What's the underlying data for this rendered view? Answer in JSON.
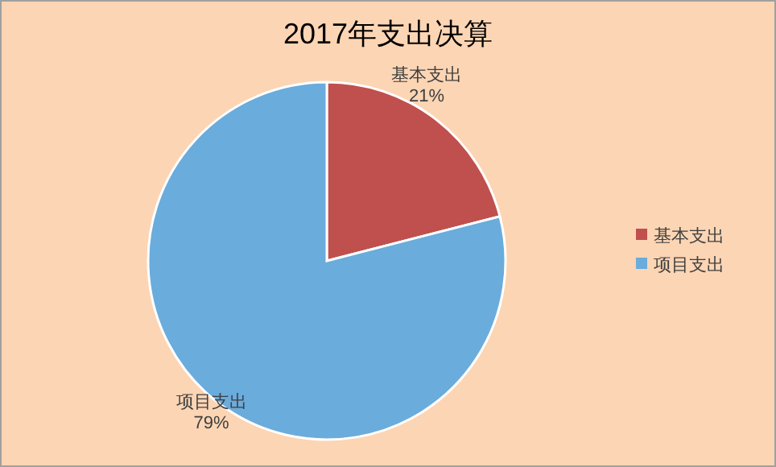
{
  "chart_data": {
    "type": "pie",
    "title": "2017年支出决算",
    "categories": [
      "基本支出",
      "项目支出"
    ],
    "values": [
      21,
      79
    ],
    "colors": [
      "#c0504d",
      "#6aacdc"
    ],
    "value_labels": [
      "21%",
      "79%"
    ],
    "legend": "right"
  }
}
